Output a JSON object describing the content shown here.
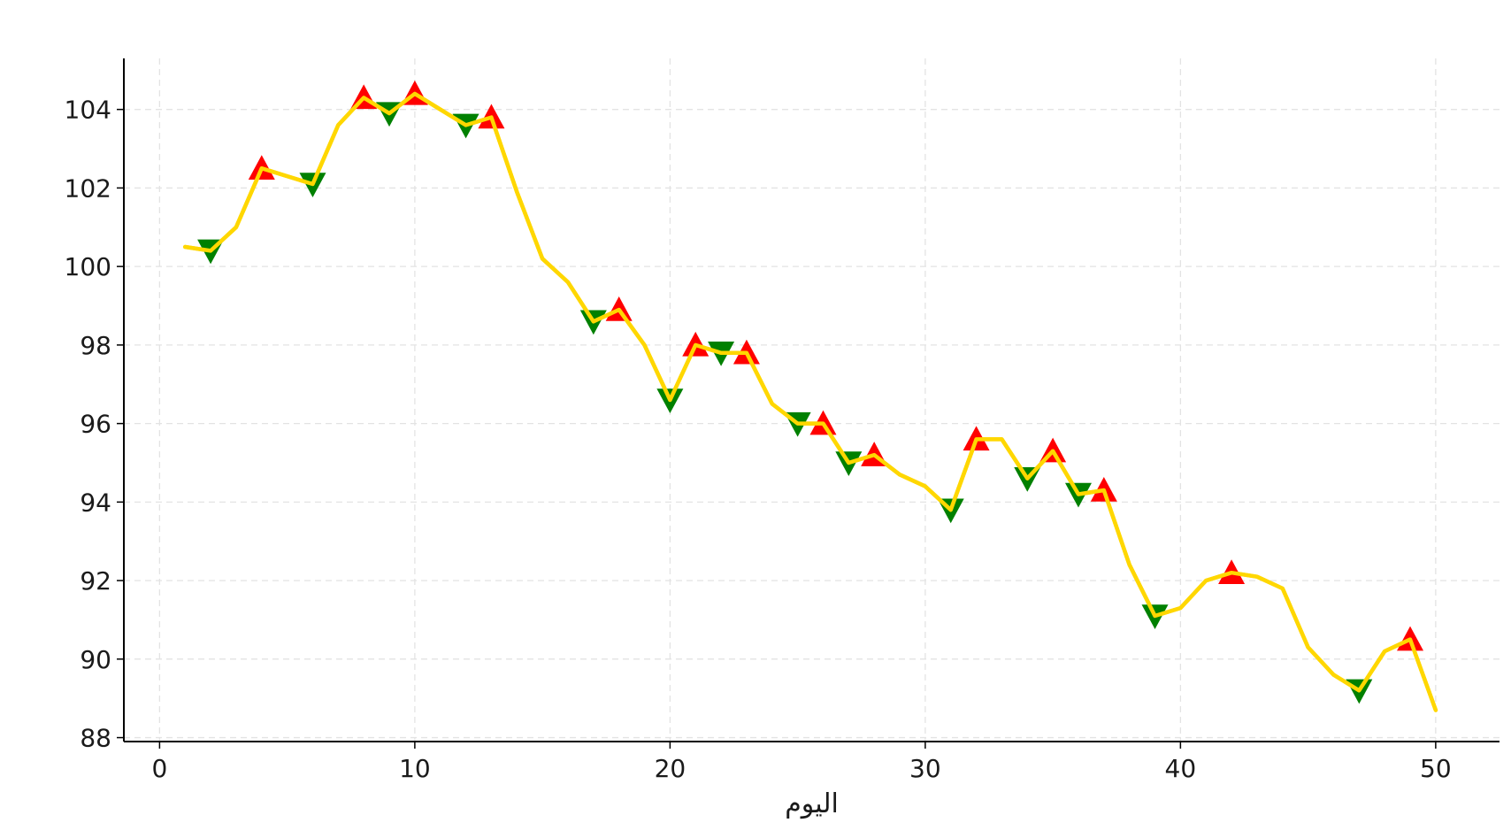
{
  "chart_data": {
    "type": "line",
    "title": "",
    "xlabel": "اليوم",
    "ylabel": "",
    "xlim": [
      -1.4,
      52.5
    ],
    "ylim": [
      87.9,
      105.3
    ],
    "x_ticks": [
      0,
      10,
      20,
      30,
      40,
      50
    ],
    "y_ticks": [
      88,
      90,
      92,
      94,
      96,
      98,
      100,
      102,
      104
    ],
    "grid": true,
    "legend": "none",
    "series": [
      {
        "kind": "line",
        "color": "#FFD700",
        "x": [
          1,
          2,
          3,
          4,
          5,
          6,
          7,
          8,
          9,
          10,
          11,
          12,
          13,
          14,
          15,
          16,
          17,
          18,
          19,
          20,
          21,
          22,
          23,
          24,
          25,
          26,
          27,
          28,
          29,
          30,
          31,
          32,
          33,
          34,
          35,
          36,
          37,
          38,
          39,
          40,
          41,
          42,
          43,
          44,
          45,
          46,
          47,
          48,
          49,
          50
        ],
        "y": [
          100.5,
          100.4,
          101.0,
          102.5,
          102.3,
          102.1,
          103.6,
          104.3,
          103.9,
          104.4,
          104.0,
          103.6,
          103.8,
          101.9,
          100.2,
          99.6,
          98.6,
          98.9,
          98.0,
          96.6,
          98.0,
          97.8,
          97.8,
          96.5,
          96.0,
          96.0,
          95.0,
          95.2,
          94.7,
          94.4,
          93.8,
          95.6,
          95.6,
          94.6,
          95.3,
          94.2,
          94.3,
          92.4,
          91.1,
          91.3,
          92.0,
          92.2,
          92.1,
          91.8,
          90.3,
          89.6,
          89.2,
          90.2,
          90.5,
          88.7
        ]
      },
      {
        "kind": "marker",
        "marker": "triangle-down",
        "color": "#008000",
        "x": [
          2,
          6,
          9,
          12,
          17,
          20,
          22,
          25,
          27,
          31,
          34,
          36,
          39,
          47
        ],
        "y": [
          100.4,
          102.1,
          103.9,
          103.6,
          98.6,
          96.6,
          97.8,
          96.0,
          95.0,
          93.8,
          94.6,
          94.2,
          91.1,
          89.2
        ]
      },
      {
        "kind": "marker",
        "marker": "triangle-up",
        "color": "#FF0000",
        "x": [
          4,
          8,
          10,
          13,
          18,
          21,
          23,
          26,
          28,
          32,
          35,
          37,
          42,
          49
        ],
        "y": [
          102.5,
          104.3,
          104.4,
          103.8,
          98.9,
          98.0,
          97.8,
          96.0,
          95.2,
          95.6,
          95.3,
          94.3,
          92.2,
          90.5
        ]
      }
    ]
  }
}
